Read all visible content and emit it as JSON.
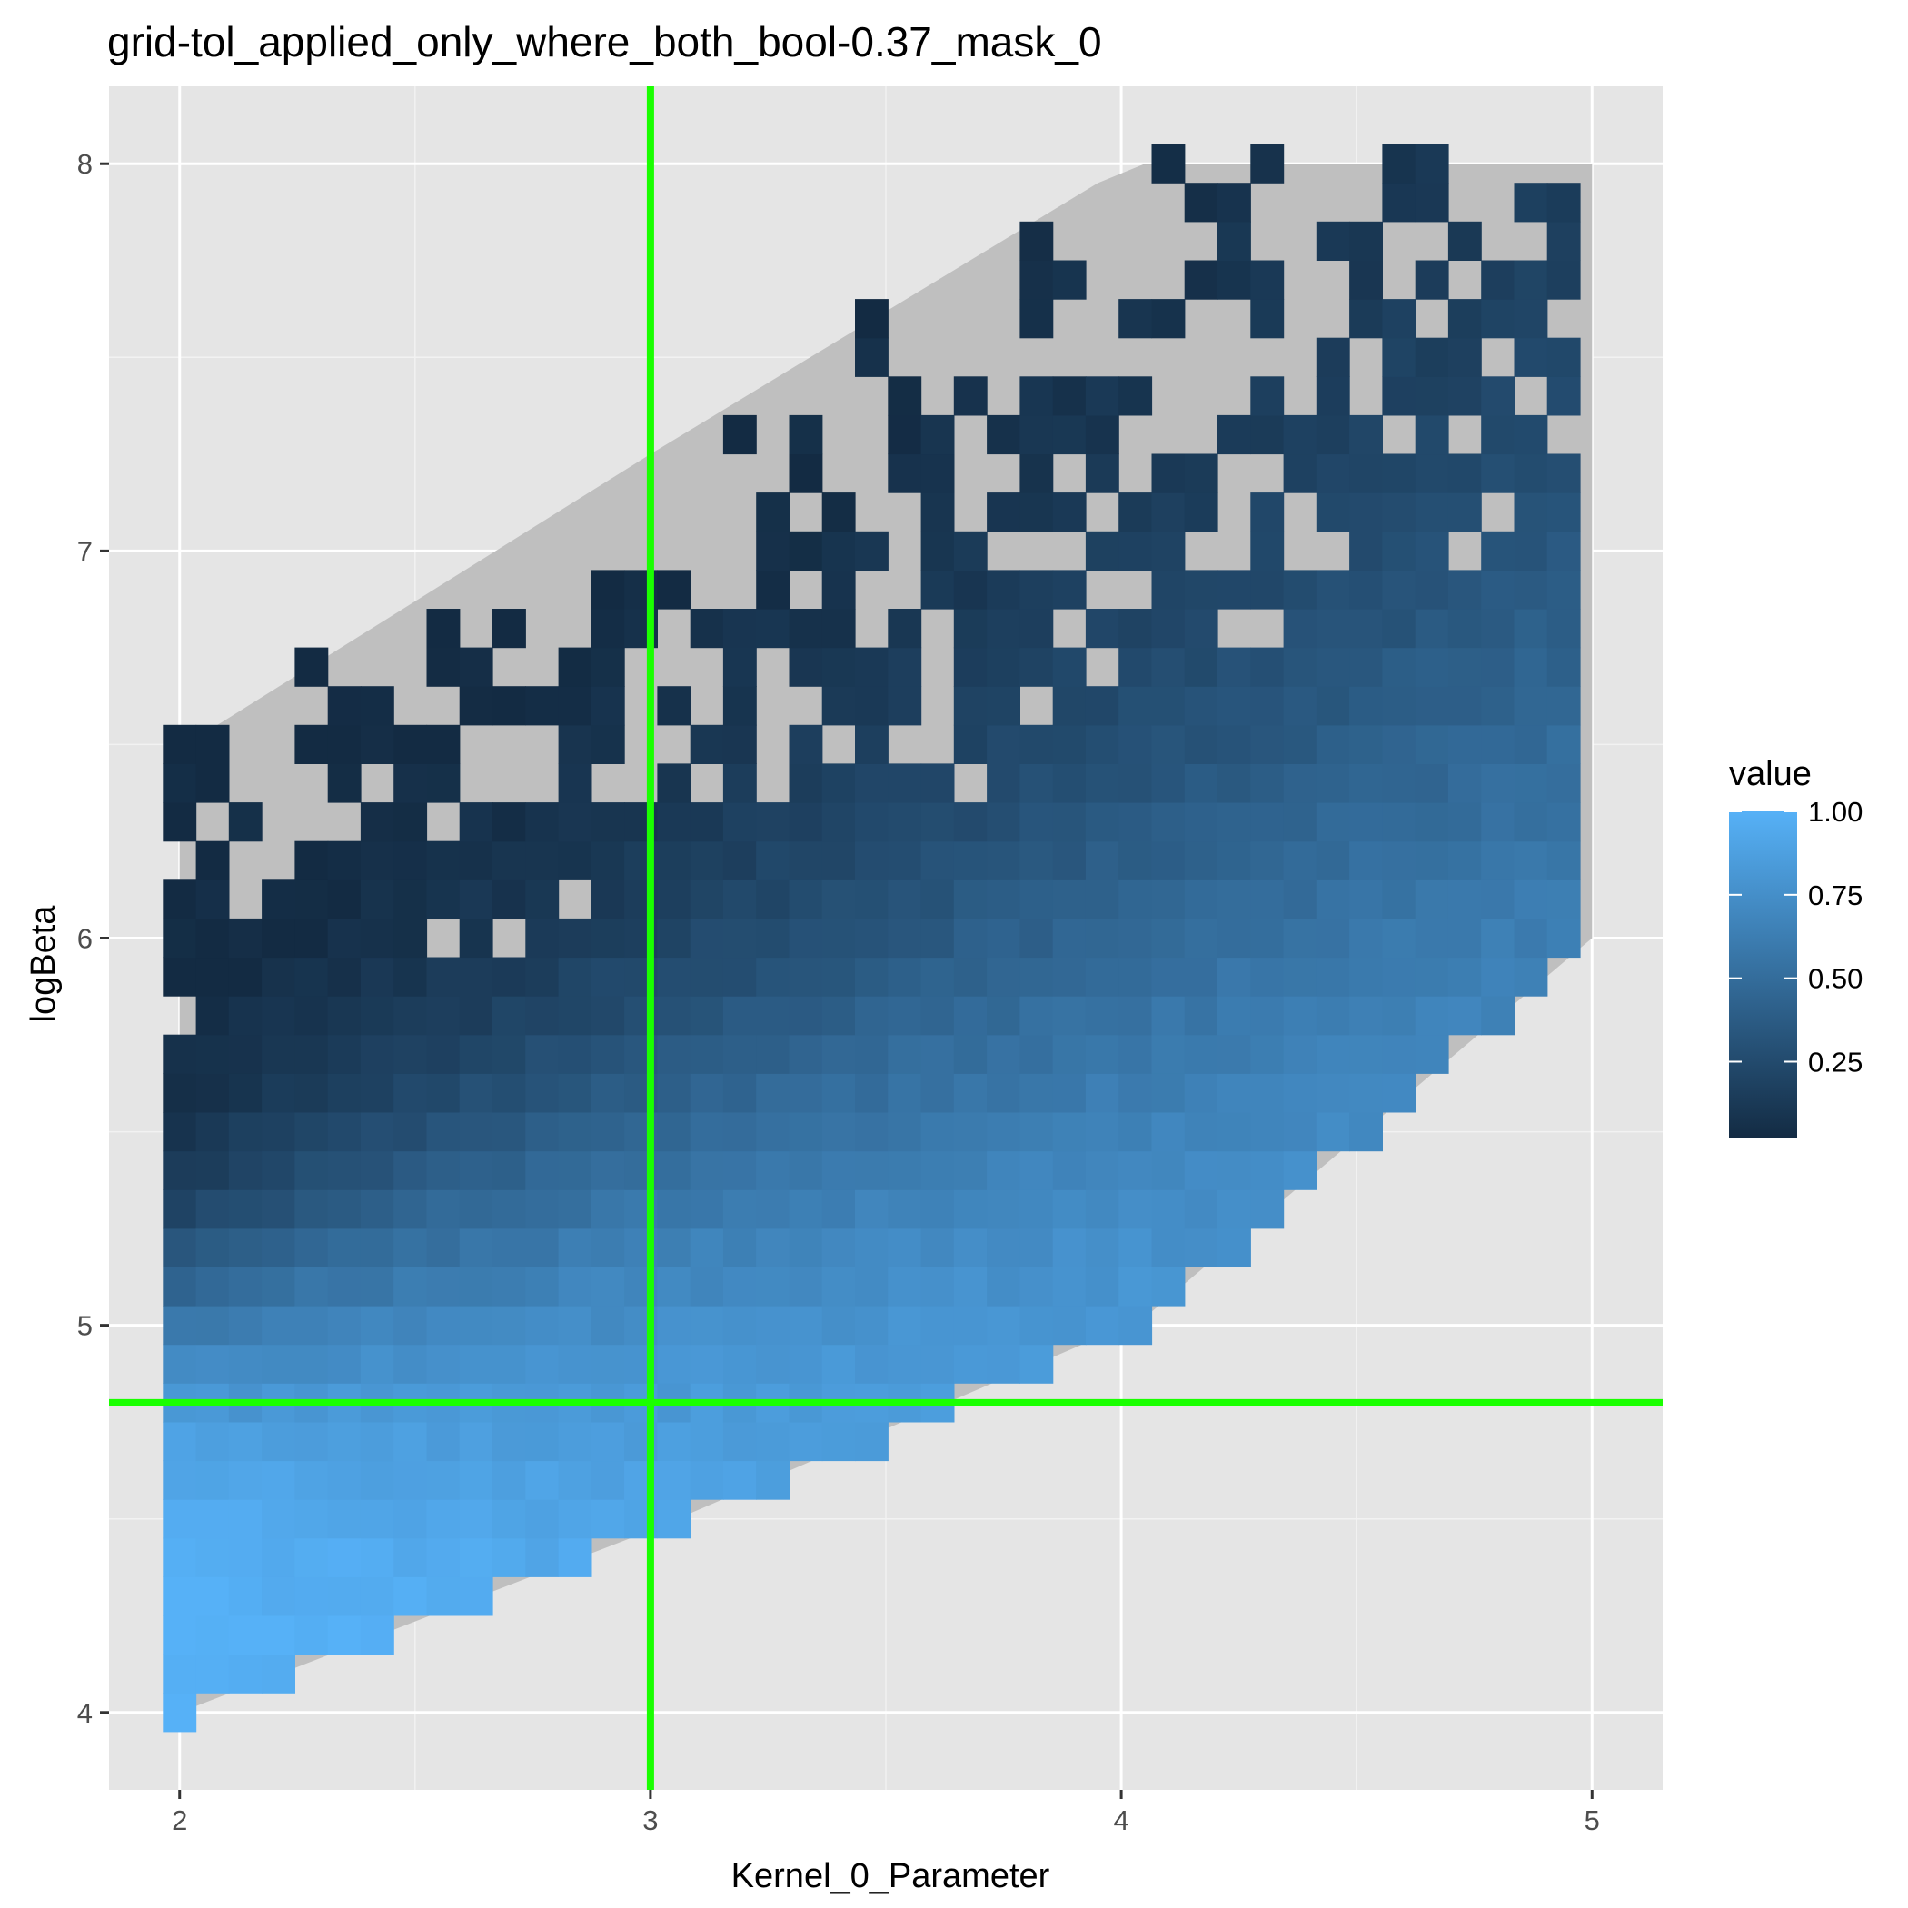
{
  "chart_data": {
    "type": "heatmap",
    "title": "grid-tol_applied_only_where_both_bool-0.37_mask_0",
    "xlabel": "Kernel_0_Parameter",
    "ylabel": "logBeta",
    "xlim": [
      1.85,
      5.15
    ],
    "ylim": [
      3.8,
      8.2
    ],
    "x_ticks": [
      2,
      3,
      4,
      5
    ],
    "x_tick_labels": [
      "2",
      "3",
      "4",
      "5"
    ],
    "y_ticks": [
      4,
      5,
      6,
      7,
      8
    ],
    "y_tick_labels": [
      "4",
      "5",
      "6",
      "7",
      "8"
    ],
    "grid": true,
    "grid_step_x": 0.07,
    "grid_step_y": 0.1,
    "value_range": [
      0,
      1
    ],
    "na_region_color": "#bfbfbf",
    "region_polygon": [
      [
        2.0,
        4.0
      ],
      [
        2.0,
        6.45
      ],
      [
        2.04,
        6.52
      ],
      [
        3.0,
        7.25
      ],
      [
        3.95,
        7.95
      ],
      [
        4.05,
        8.0
      ],
      [
        5.0,
        8.0
      ],
      [
        5.0,
        6.0
      ],
      [
        4.05,
        5.02
      ],
      [
        3.0,
        4.47
      ],
      [
        2.0,
        4.0
      ]
    ],
    "reference_lines": [
      {
        "orientation": "vertical",
        "x": 3.0,
        "color": "#1aff00"
      },
      {
        "orientation": "horizontal",
        "y": 4.8,
        "color": "#1aff00"
      }
    ],
    "legend": {
      "title": "value",
      "placement": "right",
      "ticks": [
        1.0,
        0.75,
        0.5,
        0.25
      ],
      "tick_labels": [
        "1.00",
        "0.75",
        "0.50",
        "0.25"
      ],
      "range": [
        0.02,
        1.0
      ],
      "low_color": "#132b43",
      "high_color": "#56b1f7"
    },
    "colors": {
      "panel_background": "#e5e5e5",
      "grid_major": "#ffffff",
      "grid_minor": "#f2f2f2"
    }
  }
}
